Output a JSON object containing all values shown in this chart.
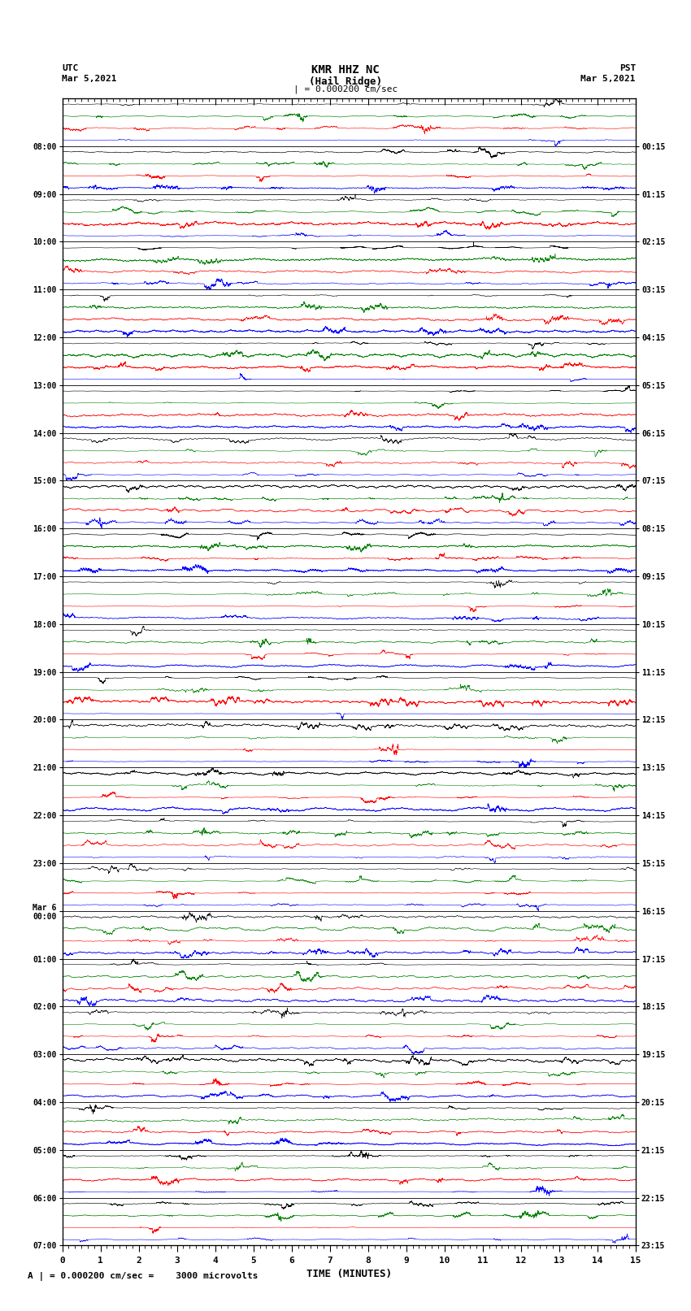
{
  "title_line1": "KMR HHZ NC",
  "title_line2": "(Hail Ridge)",
  "title_scale": "| = 0.000200 cm/sec",
  "utc_label": "UTC",
  "utc_date": "Mar 5,2021",
  "pst_label": "PST",
  "pst_date": "Mar 5,2021",
  "left_times": [
    "08:00",
    "09:00",
    "10:00",
    "11:00",
    "12:00",
    "13:00",
    "14:00",
    "15:00",
    "16:00",
    "17:00",
    "18:00",
    "19:00",
    "20:00",
    "21:00",
    "22:00",
    "23:00",
    "Mar 6\n00:00",
    "01:00",
    "02:00",
    "03:00",
    "04:00",
    "05:00",
    "06:00",
    "07:00"
  ],
  "right_times": [
    "00:15",
    "01:15",
    "02:15",
    "03:15",
    "04:15",
    "05:15",
    "06:15",
    "07:15",
    "08:15",
    "09:15",
    "10:15",
    "11:15",
    "12:15",
    "13:15",
    "14:15",
    "15:15",
    "16:15",
    "17:15",
    "18:15",
    "19:15",
    "20:15",
    "21:15",
    "22:15",
    "23:15"
  ],
  "xlabel": "TIME (MINUTES)",
  "xmin": 0,
  "xmax": 15,
  "xticks": [
    0,
    1,
    2,
    3,
    4,
    5,
    6,
    7,
    8,
    9,
    10,
    11,
    12,
    13,
    14,
    15
  ],
  "footer": "A | = 0.000200 cm/sec =    3000 microvolts",
  "n_rows": 24,
  "colors": [
    "blue",
    "red",
    "green",
    "black"
  ],
  "bg_color": "#ffffff",
  "seed": 42
}
